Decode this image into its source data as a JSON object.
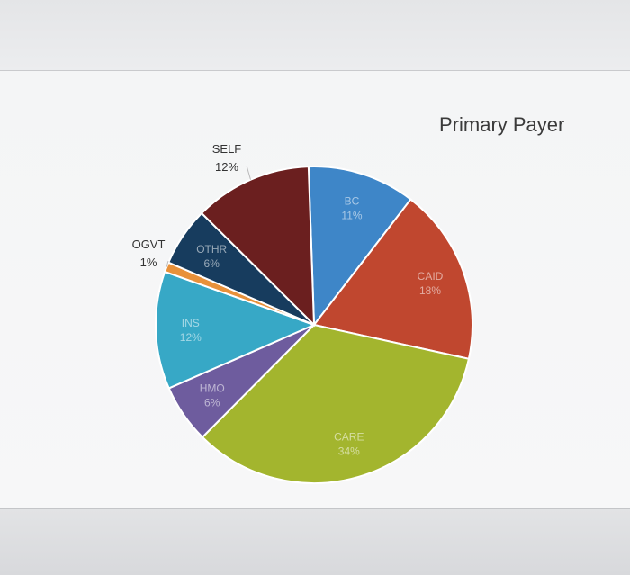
{
  "chart_data": {
    "type": "pie",
    "title": "Primary Payer",
    "slices": [
      {
        "label": "BC",
        "pct_label": "11%",
        "value": 11,
        "color": "#3e86c8",
        "placement": "inside"
      },
      {
        "label": "CAID",
        "pct_label": "18%",
        "value": 18,
        "color": "#c0472f",
        "placement": "inside"
      },
      {
        "label": "CARE",
        "pct_label": "34%",
        "value": 34,
        "color": "#a3b52e",
        "placement": "inside"
      },
      {
        "label": "HMO",
        "pct_label": "6%",
        "value": 6,
        "color": "#6e5c9e",
        "placement": "inside"
      },
      {
        "label": "INS",
        "pct_label": "12%",
        "value": 12,
        "color": "#37a8c6",
        "placement": "inside"
      },
      {
        "label": "OGVT",
        "pct_label": "1%",
        "value": 1,
        "color": "#e8913a",
        "placement": "outside"
      },
      {
        "label": "OTHR",
        "pct_label": "6%",
        "value": 6,
        "color": "#173c5e",
        "placement": "inside"
      },
      {
        "label": "SELF",
        "pct_label": "12%",
        "value": 12,
        "color": "#6b1f1f",
        "placement": "outside"
      }
    ],
    "legend": "none"
  }
}
